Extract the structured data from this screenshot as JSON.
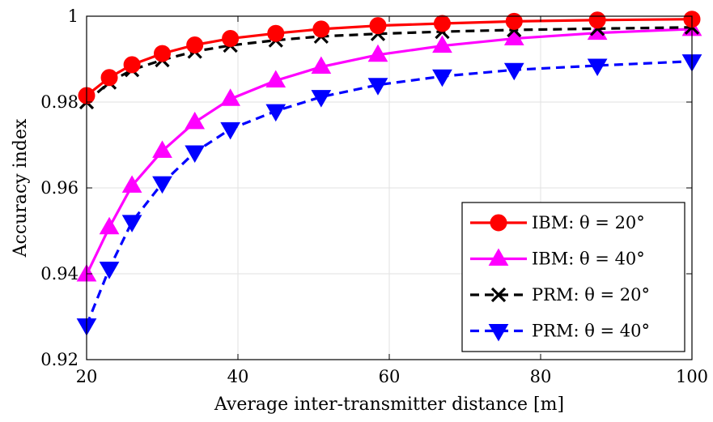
{
  "chart_data": {
    "type": "line",
    "xlabel": "Average inter-transmitter distance [m]",
    "ylabel": "Accuracy index",
    "xlim": [
      20,
      100
    ],
    "ylim": [
      0.92,
      1.0
    ],
    "xticks": [
      20,
      40,
      60,
      80,
      100
    ],
    "yticks": [
      0.92,
      0.94,
      0.96,
      0.98,
      1.0
    ],
    "xtick_labels": [
      "20",
      "40",
      "60",
      "80",
      "100"
    ],
    "ytick_labels": [
      "0.92",
      "0.94",
      "0.96",
      "0.98",
      "1"
    ],
    "grid": true,
    "legend_position": "bottom-right",
    "x": [
      20,
      23,
      26,
      30,
      34.3,
      39,
      45,
      51,
      58.5,
      67,
      76.5,
      87.5,
      100
    ],
    "series": [
      {
        "name": "IBM:  θ = 20°",
        "color": "#ff0000",
        "line_style": "solid",
        "marker": "circle",
        "values": [
          0.9815,
          0.9857,
          0.9887,
          0.9913,
          0.9933,
          0.9948,
          0.996,
          0.997,
          0.9978,
          0.9983,
          0.9988,
          0.9991,
          0.9993
        ]
      },
      {
        "name": "IBM:  θ = 40°",
        "color": "#ff00ff",
        "line_style": "solid",
        "marker": "triangle-up",
        "values": [
          0.9398,
          0.9508,
          0.9605,
          0.9686,
          0.9753,
          0.9807,
          0.985,
          0.9882,
          0.991,
          0.9931,
          0.9948,
          0.9961,
          0.997
        ]
      },
      {
        "name": "PRM:  θ = 20°",
        "color": "#000000",
        "line_style": "dashed",
        "marker": "x",
        "values": [
          0.98,
          0.9846,
          0.9875,
          0.9898,
          0.9918,
          0.9932,
          0.9944,
          0.9953,
          0.9959,
          0.9964,
          0.9968,
          0.9971,
          0.9974
        ]
      },
      {
        "name": "PRM:  θ = 40°",
        "color": "#0000ff",
        "line_style": "dashed",
        "marker": "triangle-down",
        "values": [
          0.928,
          0.9412,
          0.9521,
          0.9611,
          0.9683,
          0.9737,
          0.9779,
          0.9812,
          0.984,
          0.986,
          0.9875,
          0.9885,
          0.9895
        ]
      }
    ]
  }
}
